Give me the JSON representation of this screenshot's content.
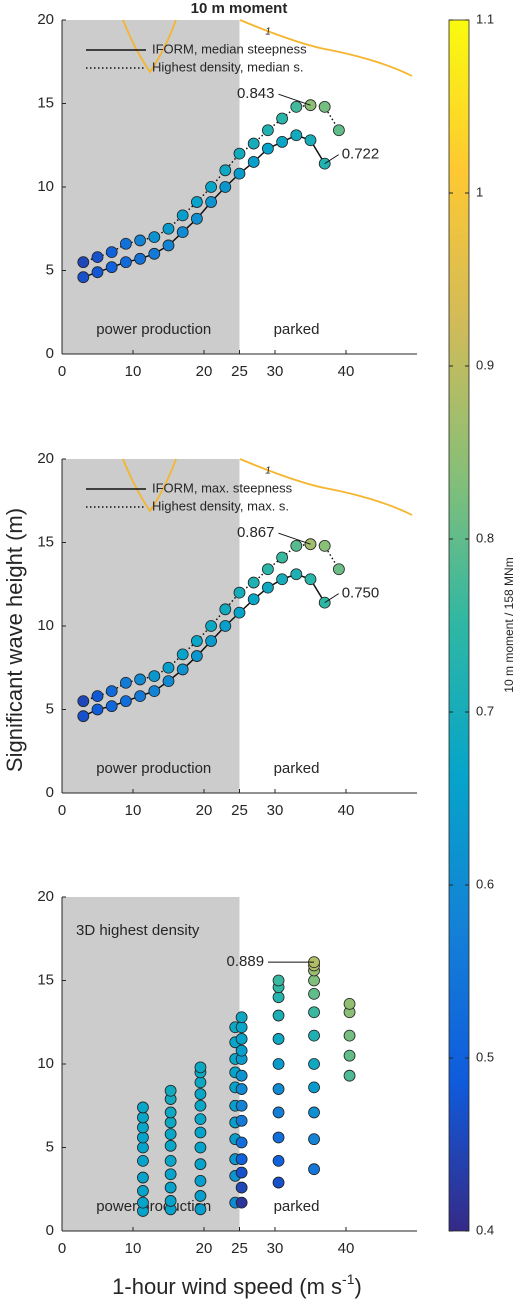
{
  "title": "10 m moment",
  "ylabel": "Significant wave height (m)",
  "xlabel": [
    "1-hour wind speed (m s",
    "-1",
    ")"
  ],
  "colorbar": {
    "label": "10 m moment / 158 MNm",
    "lim": [
      0.4,
      1.1
    ],
    "ticks": [
      0.4,
      0.5,
      0.6,
      0.7,
      0.8,
      0.9,
      1,
      1.1
    ],
    "colormap": "parula"
  },
  "chart_data": [
    {
      "type": "scatter",
      "xlim": [
        0,
        50
      ],
      "ylim": [
        0,
        20
      ],
      "xticks": [
        0,
        10,
        20,
        25,
        30,
        40
      ],
      "yticks": [
        0,
        5,
        10,
        15,
        20
      ],
      "shaded_xlim": [
        0,
        25
      ],
      "regions": [
        "power production",
        "parked"
      ],
      "contour_level": 1,
      "legend": true,
      "series": [
        {
          "name": "IFORM, median steepness",
          "line": "solid",
          "max_label": "0.722",
          "x": [
            3,
            5,
            7,
            9,
            11,
            13,
            15,
            17,
            19,
            21,
            23,
            25,
            27,
            29,
            31,
            33,
            35,
            37
          ],
          "values": [
            4.6,
            4.9,
            5.2,
            5.5,
            5.7,
            6.0,
            6.5,
            7.3,
            8.1,
            9.1,
            10.0,
            10.8,
            11.5,
            12.3,
            12.7,
            13.1,
            12.8,
            11.4
          ],
          "c": [
            0.47,
            0.48,
            0.5,
            0.52,
            0.54,
            0.56,
            0.58,
            0.6,
            0.61,
            0.62,
            0.63,
            0.64,
            0.65,
            0.66,
            0.67,
            0.69,
            0.7,
            0.722
          ]
        },
        {
          "name": "Highest density, median s.",
          "line": "dotted",
          "max_label": "0.843",
          "x": [
            3,
            5,
            7,
            9,
            11,
            13,
            15,
            17,
            19,
            21,
            23,
            25,
            27,
            29,
            31,
            33,
            35,
            37,
            39
          ],
          "values": [
            5.5,
            5.8,
            6.1,
            6.6,
            6.8,
            7.0,
            7.5,
            8.3,
            9.1,
            10.0,
            11.0,
            12.0,
            12.6,
            13.4,
            14.1,
            14.8,
            14.9,
            14.8,
            13.4
          ],
          "c": [
            0.45,
            0.47,
            0.5,
            0.54,
            0.58,
            0.62,
            0.64,
            0.65,
            0.66,
            0.67,
            0.68,
            0.69,
            0.7,
            0.72,
            0.74,
            0.77,
            0.843,
            0.82,
            0.8
          ]
        }
      ]
    },
    {
      "type": "scatter",
      "xlim": [
        0,
        50
      ],
      "ylim": [
        0,
        20
      ],
      "xticks": [
        0,
        10,
        20,
        25,
        30,
        40
      ],
      "yticks": [
        0,
        5,
        10,
        15,
        20
      ],
      "shaded_xlim": [
        0,
        25
      ],
      "regions": [
        "power production",
        "parked"
      ],
      "contour_level": 1,
      "legend": true,
      "series": [
        {
          "name": "IFORM, max. steepness",
          "line": "solid",
          "max_label": "0.750",
          "x": [
            3,
            5,
            7,
            9,
            11,
            13,
            15,
            17,
            19,
            21,
            23,
            25,
            27,
            29,
            31,
            33,
            35,
            37
          ],
          "values": [
            4.6,
            5.0,
            5.2,
            5.5,
            5.8,
            6.1,
            6.7,
            7.4,
            8.2,
            9.1,
            10.0,
            10.8,
            11.6,
            12.3,
            12.8,
            13.1,
            12.8,
            11.4
          ],
          "c": [
            0.47,
            0.49,
            0.51,
            0.53,
            0.56,
            0.58,
            0.6,
            0.62,
            0.63,
            0.64,
            0.65,
            0.66,
            0.67,
            0.68,
            0.7,
            0.72,
            0.74,
            0.75
          ]
        },
        {
          "name": "Highest density, max. s.",
          "line": "dotted",
          "max_label": "0.867",
          "x": [
            3,
            5,
            7,
            9,
            11,
            13,
            15,
            17,
            19,
            21,
            23,
            25,
            27,
            29,
            31,
            33,
            35,
            37,
            39
          ],
          "values": [
            5.5,
            5.8,
            6.1,
            6.6,
            6.8,
            7.0,
            7.5,
            8.3,
            9.1,
            10.0,
            11.0,
            12.0,
            12.6,
            13.4,
            14.1,
            14.8,
            14.9,
            14.8,
            13.4
          ],
          "c": [
            0.45,
            0.48,
            0.52,
            0.56,
            0.6,
            0.63,
            0.65,
            0.66,
            0.67,
            0.68,
            0.69,
            0.7,
            0.72,
            0.74,
            0.76,
            0.79,
            0.867,
            0.84,
            0.81
          ]
        }
      ]
    },
    {
      "type": "scatter",
      "xlim": [
        0,
        50
      ],
      "ylim": [
        0,
        20
      ],
      "xticks": [
        0,
        10,
        20,
        25,
        30,
        40
      ],
      "yticks": [
        0,
        5,
        10,
        15,
        20
      ],
      "shaded_xlim": [
        0,
        25
      ],
      "regions": [
        "power production",
        "parked"
      ],
      "legend": false,
      "series": [
        {
          "name": "3D highest density",
          "line": "none",
          "max_label": "0.889",
          "x": [
            11.4,
            11.4,
            11.4,
            11.4,
            11.4,
            11.4,
            11.4,
            11.4,
            11.4,
            11.4,
            15.3,
            15.3,
            15.3,
            15.3,
            15.3,
            15.3,
            15.3,
            15.3,
            15.3,
            15.3,
            15.3,
            19.5,
            19.5,
            19.5,
            19.5,
            19.5,
            19.5,
            19.5,
            19.5,
            19.5,
            19.5,
            19.5,
            19.5,
            24.4,
            24.4,
            24.4,
            24.4,
            24.4,
            24.4,
            24.4,
            24.4,
            24.4,
            24.4,
            24.4,
            25.3,
            25.3,
            25.3,
            25.3,
            25.3,
            25.3,
            25.3,
            25.3,
            25.3,
            25.3,
            25.3,
            25.3,
            25.3,
            25.3,
            30.5,
            30.5,
            30.5,
            30.5,
            30.5,
            30.5,
            30.5,
            30.5,
            30.5,
            30.5,
            30.5,
            35.5,
            35.5,
            35.5,
            35.5,
            35.5,
            35.5,
            35.5,
            35.5,
            35.5,
            35.5,
            35.5,
            35.5,
            40.5,
            40.5,
            40.5,
            40.5,
            40.5
          ],
          "values": [
            1.2,
            1.7,
            2.4,
            3.2,
            4.2,
            5.0,
            5.6,
            6.2,
            6.8,
            7.4,
            1.3,
            1.8,
            2.6,
            3.4,
            4.2,
            5.1,
            5.8,
            6.5,
            7.1,
            7.9,
            8.4,
            1.3,
            2.1,
            3.0,
            4.0,
            5.0,
            5.9,
            6.7,
            7.5,
            8.2,
            8.9,
            9.5,
            9.8,
            1.7,
            3.3,
            4.3,
            5.5,
            6.5,
            7.5,
            8.6,
            9.5,
            10.3,
            11.3,
            12.2,
            1.7,
            2.6,
            3.5,
            4.3,
            5.3,
            6.6,
            7.5,
            8.5,
            9.3,
            10.3,
            10.8,
            11.5,
            12.2,
            12.8,
            2.9,
            4.2,
            5.6,
            7.1,
            8.5,
            10.0,
            11.5,
            12.9,
            14.0,
            14.6,
            15.0,
            3.7,
            5.5,
            7.1,
            8.6,
            10.0,
            11.7,
            13.1,
            14.2,
            15.0,
            15.6,
            15.9,
            16.1,
            9.3,
            10.5,
            11.7,
            13.1,
            13.6
          ],
          "c": [
            0.66,
            0.66,
            0.66,
            0.66,
            0.66,
            0.66,
            0.66,
            0.67,
            0.67,
            0.67,
            0.66,
            0.66,
            0.66,
            0.66,
            0.67,
            0.67,
            0.67,
            0.68,
            0.68,
            0.69,
            0.69,
            0.65,
            0.65,
            0.65,
            0.66,
            0.66,
            0.66,
            0.67,
            0.67,
            0.67,
            0.68,
            0.68,
            0.68,
            0.6,
            0.62,
            0.63,
            0.64,
            0.65,
            0.65,
            0.66,
            0.66,
            0.67,
            0.67,
            0.68,
            0.42,
            0.45,
            0.47,
            0.5,
            0.53,
            0.56,
            0.58,
            0.6,
            0.62,
            0.64,
            0.65,
            0.66,
            0.67,
            0.68,
            0.47,
            0.5,
            0.53,
            0.57,
            0.6,
            0.64,
            0.68,
            0.71,
            0.73,
            0.75,
            0.76,
            0.55,
            0.58,
            0.61,
            0.64,
            0.68,
            0.72,
            0.76,
            0.8,
            0.83,
            0.86,
            0.88,
            0.889,
            0.78,
            0.8,
            0.82,
            0.84,
            0.85
          ]
        }
      ]
    }
  ]
}
